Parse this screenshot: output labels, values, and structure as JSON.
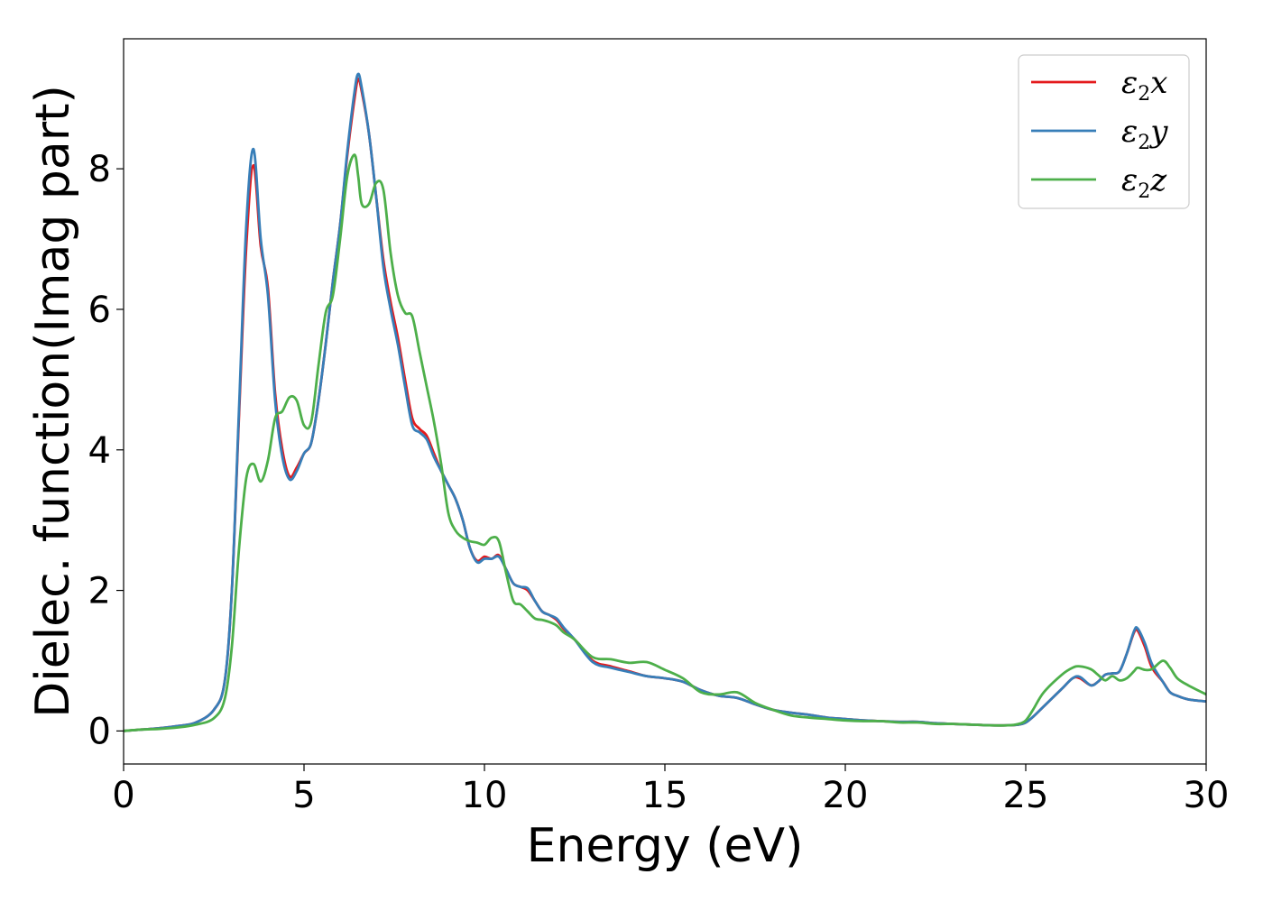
{
  "chart_data": {
    "type": "line",
    "title": "",
    "xlabel": "Energy (eV)",
    "ylabel": "Dielec. function(Imag part)",
    "xlim": [
      0,
      30
    ],
    "ylim": [
      -0.47,
      9.85
    ],
    "xticks": [
      0,
      5,
      10,
      15,
      20,
      25,
      30
    ],
    "yticks": [
      0,
      2,
      4,
      6,
      8
    ],
    "grid": false,
    "legend": {
      "placement": "top-right"
    },
    "x": [
      0,
      0.5,
      1,
      1.5,
      2,
      2.5,
      2.8,
      3,
      3.2,
      3.4,
      3.6,
      3.8,
      4,
      4.2,
      4.4,
      4.6,
      4.8,
      5,
      5.2,
      5.4,
      5.6,
      5.8,
      6,
      6.2,
      6.4,
      6.5,
      6.6,
      6.8,
      7,
      7.2,
      7.4,
      7.6,
      7.8,
      8,
      8.2,
      8.4,
      8.6,
      8.8,
      9,
      9.2,
      9.4,
      9.6,
      9.8,
      10,
      10.2,
      10.4,
      10.6,
      10.8,
      11,
      11.2,
      11.4,
      11.6,
      11.8,
      12,
      12.2,
      12.5,
      13,
      13.5,
      14,
      14.5,
      15,
      15.5,
      16,
      16.5,
      17,
      17.5,
      18,
      18.5,
      19,
      19.5,
      20,
      20.5,
      21,
      21.5,
      22,
      22.5,
      23,
      23.5,
      24,
      24.5,
      24.8,
      25,
      25.2,
      25.5,
      26,
      26.3,
      26.5,
      26.8,
      27,
      27.2,
      27.4,
      27.6,
      27.8,
      28,
      28.1,
      28.3,
      28.5,
      28.8,
      29,
      29.2,
      29.5,
      30
    ],
    "series": [
      {
        "name": "ε2x",
        "color": "#e41a1c",
        "values": [
          0.0,
          0.02,
          0.04,
          0.07,
          0.12,
          0.3,
          0.7,
          2.0,
          4.5,
          6.9,
          8.05,
          6.9,
          6.3,
          4.8,
          4.0,
          3.62,
          3.75,
          3.95,
          4.1,
          4.7,
          5.5,
          6.4,
          7.2,
          8.2,
          9.0,
          9.28,
          9.1,
          8.5,
          7.6,
          6.7,
          6.1,
          5.6,
          5.0,
          4.45,
          4.3,
          4.2,
          3.95,
          3.7,
          3.5,
          3.3,
          3.0,
          2.6,
          2.42,
          2.48,
          2.45,
          2.5,
          2.3,
          2.1,
          2.05,
          2.0,
          1.85,
          1.7,
          1.65,
          1.58,
          1.45,
          1.3,
          1.0,
          0.92,
          0.85,
          0.78,
          0.75,
          0.7,
          0.58,
          0.5,
          0.47,
          0.38,
          0.3,
          0.26,
          0.23,
          0.19,
          0.17,
          0.15,
          0.14,
          0.13,
          0.13,
          0.11,
          0.1,
          0.09,
          0.08,
          0.08,
          0.09,
          0.12,
          0.2,
          0.35,
          0.6,
          0.75,
          0.75,
          0.65,
          0.7,
          0.8,
          0.82,
          0.85,
          1.1,
          1.4,
          1.43,
          1.2,
          0.9,
          0.7,
          0.55,
          0.5,
          0.45,
          0.42
        ]
      },
      {
        "name": "ε2y",
        "color": "#377eb8",
        "values": [
          0.0,
          0.02,
          0.04,
          0.07,
          0.12,
          0.3,
          0.7,
          2.0,
          4.6,
          7.2,
          8.28,
          7.0,
          6.2,
          4.7,
          3.9,
          3.58,
          3.7,
          3.95,
          4.1,
          4.7,
          5.5,
          6.4,
          7.2,
          8.25,
          9.1,
          9.35,
          9.15,
          8.5,
          7.6,
          6.6,
          6.0,
          5.5,
          4.9,
          4.35,
          4.25,
          4.15,
          3.9,
          3.7,
          3.5,
          3.3,
          3.0,
          2.6,
          2.4,
          2.45,
          2.45,
          2.48,
          2.3,
          2.1,
          2.05,
          2.03,
          1.85,
          1.7,
          1.65,
          1.6,
          1.47,
          1.3,
          0.98,
          0.9,
          0.84,
          0.78,
          0.75,
          0.7,
          0.58,
          0.5,
          0.47,
          0.38,
          0.3,
          0.26,
          0.23,
          0.19,
          0.17,
          0.15,
          0.14,
          0.13,
          0.13,
          0.11,
          0.1,
          0.09,
          0.08,
          0.08,
          0.09,
          0.12,
          0.2,
          0.35,
          0.6,
          0.75,
          0.77,
          0.65,
          0.7,
          0.8,
          0.82,
          0.85,
          1.1,
          1.42,
          1.46,
          1.25,
          0.95,
          0.7,
          0.55,
          0.5,
          0.45,
          0.42
        ]
      },
      {
        "name": "ε2z",
        "color": "#4daf4a",
        "values": [
          0.0,
          0.02,
          0.03,
          0.05,
          0.09,
          0.18,
          0.45,
          1.2,
          2.6,
          3.6,
          3.8,
          3.55,
          3.85,
          4.45,
          4.55,
          4.75,
          4.7,
          4.35,
          4.4,
          5.2,
          5.95,
          6.2,
          7.0,
          7.9,
          8.2,
          7.9,
          7.5,
          7.5,
          7.8,
          7.7,
          6.8,
          6.2,
          5.95,
          5.9,
          5.4,
          4.9,
          4.4,
          3.8,
          3.1,
          2.85,
          2.75,
          2.7,
          2.68,
          2.65,
          2.75,
          2.7,
          2.25,
          1.85,
          1.8,
          1.7,
          1.6,
          1.58,
          1.55,
          1.5,
          1.4,
          1.3,
          1.05,
          1.02,
          0.97,
          0.98,
          0.87,
          0.75,
          0.55,
          0.52,
          0.55,
          0.4,
          0.3,
          0.22,
          0.19,
          0.17,
          0.15,
          0.14,
          0.14,
          0.12,
          0.12,
          0.1,
          0.1,
          0.09,
          0.08,
          0.08,
          0.1,
          0.15,
          0.3,
          0.55,
          0.8,
          0.9,
          0.92,
          0.88,
          0.8,
          0.72,
          0.78,
          0.72,
          0.75,
          0.85,
          0.9,
          0.87,
          0.88,
          1.0,
          0.9,
          0.75,
          0.65,
          0.52
        ]
      }
    ]
  }
}
